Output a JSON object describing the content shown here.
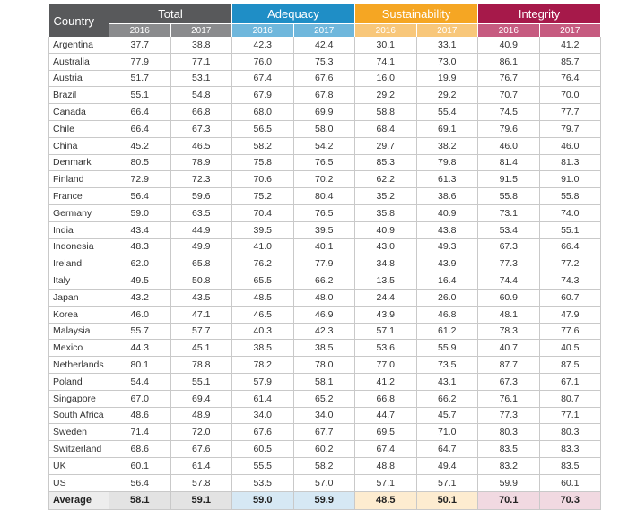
{
  "header": {
    "country_label": "Country",
    "groups": [
      {
        "name": "Total",
        "color": "#58595b"
      },
      {
        "name": "Adequacy",
        "color": "#1f8ec6"
      },
      {
        "name": "Sustainability",
        "color": "#f5a623"
      },
      {
        "name": "Integrity",
        "color": "#a6194a"
      }
    ],
    "years": [
      "2016",
      "2017"
    ]
  },
  "rows": [
    {
      "country": "Argentina",
      "values": [
        "37.7",
        "38.8",
        "42.3",
        "42.4",
        "30.1",
        "33.1",
        "40.9",
        "41.2"
      ]
    },
    {
      "country": "Australia",
      "values": [
        "77.9",
        "77.1",
        "76.0",
        "75.3",
        "74.1",
        "73.0",
        "86.1",
        "85.7"
      ]
    },
    {
      "country": "Austria",
      "values": [
        "51.7",
        "53.1",
        "67.4",
        "67.6",
        "16.0",
        "19.9",
        "76.7",
        "76.4"
      ]
    },
    {
      "country": "Brazil",
      "values": [
        "55.1",
        "54.8",
        "67.9",
        "67.8",
        "29.2",
        "29.2",
        "70.7",
        "70.0"
      ]
    },
    {
      "country": "Canada",
      "values": [
        "66.4",
        "66.8",
        "68.0",
        "69.9",
        "58.8",
        "55.4",
        "74.5",
        "77.7"
      ]
    },
    {
      "country": "Chile",
      "values": [
        "66.4",
        "67.3",
        "56.5",
        "58.0",
        "68.4",
        "69.1",
        "79.6",
        "79.7"
      ]
    },
    {
      "country": "China",
      "values": [
        "45.2",
        "46.5",
        "58.2",
        "54.2",
        "29.7",
        "38.2",
        "46.0",
        "46.0"
      ]
    },
    {
      "country": "Denmark",
      "values": [
        "80.5",
        "78.9",
        "75.8",
        "76.5",
        "85.3",
        "79.8",
        "81.4",
        "81.3"
      ]
    },
    {
      "country": "Finland",
      "values": [
        "72.9",
        "72.3",
        "70.6",
        "70.2",
        "62.2",
        "61.3",
        "91.5",
        "91.0"
      ]
    },
    {
      "country": "France",
      "values": [
        "56.4",
        "59.6",
        "75.2",
        "80.4",
        "35.2",
        "38.6",
        "55.8",
        "55.8"
      ]
    },
    {
      "country": "Germany",
      "values": [
        "59.0",
        "63.5",
        "70.4",
        "76.5",
        "35.8",
        "40.9",
        "73.1",
        "74.0"
      ]
    },
    {
      "country": "India",
      "values": [
        "43.4",
        "44.9",
        "39.5",
        "39.5",
        "40.9",
        "43.8",
        "53.4",
        "55.1"
      ]
    },
    {
      "country": "Indonesia",
      "values": [
        "48.3",
        "49.9",
        "41.0",
        "40.1",
        "43.0",
        "49.3",
        "67.3",
        "66.4"
      ]
    },
    {
      "country": "Ireland",
      "values": [
        "62.0",
        "65.8",
        "76.2",
        "77.9",
        "34.8",
        "43.9",
        "77.3",
        "77.2"
      ]
    },
    {
      "country": "Italy",
      "values": [
        "49.5",
        "50.8",
        "65.5",
        "66.2",
        "13.5",
        "16.4",
        "74.4",
        "74.3"
      ]
    },
    {
      "country": "Japan",
      "values": [
        "43.2",
        "43.5",
        "48.5",
        "48.0",
        "24.4",
        "26.0",
        "60.9",
        "60.7"
      ]
    },
    {
      "country": "Korea",
      "values": [
        "46.0",
        "47.1",
        "46.5",
        "46.9",
        "43.9",
        "46.8",
        "48.1",
        "47.9"
      ]
    },
    {
      "country": "Malaysia",
      "values": [
        "55.7",
        "57.7",
        "40.3",
        "42.3",
        "57.1",
        "61.2",
        "78.3",
        "77.6"
      ]
    },
    {
      "country": "Mexico",
      "values": [
        "44.3",
        "45.1",
        "38.5",
        "38.5",
        "53.6",
        "55.9",
        "40.7",
        "40.5"
      ]
    },
    {
      "country": "Netherlands",
      "values": [
        "80.1",
        "78.8",
        "78.2",
        "78.0",
        "77.0",
        "73.5",
        "87.7",
        "87.5"
      ]
    },
    {
      "country": "Poland",
      "values": [
        "54.4",
        "55.1",
        "57.9",
        "58.1",
        "41.2",
        "43.1",
        "67.3",
        "67.1"
      ]
    },
    {
      "country": "Singapore",
      "values": [
        "67.0",
        "69.4",
        "61.4",
        "65.2",
        "66.8",
        "66.2",
        "76.1",
        "80.7"
      ]
    },
    {
      "country": "South Africa",
      "values": [
        "48.6",
        "48.9",
        "34.0",
        "34.0",
        "44.7",
        "45.7",
        "77.3",
        "77.1"
      ]
    },
    {
      "country": "Sweden",
      "values": [
        "71.4",
        "72.0",
        "67.6",
        "67.7",
        "69.5",
        "71.0",
        "80.3",
        "80.3"
      ]
    },
    {
      "country": "Switzerland",
      "values": [
        "68.6",
        "67.6",
        "60.5",
        "60.2",
        "67.4",
        "64.7",
        "83.5",
        "83.3"
      ]
    },
    {
      "country": "UK",
      "values": [
        "60.1",
        "61.4",
        "55.5",
        "58.2",
        "48.8",
        "49.4",
        "83.2",
        "83.5"
      ]
    },
    {
      "country": "US",
      "values": [
        "56.4",
        "57.8",
        "53.5",
        "57.0",
        "57.1",
        "57.1",
        "59.9",
        "60.1"
      ]
    }
  ],
  "average": {
    "label": "Average",
    "values": [
      "58.1",
      "59.1",
      "59.0",
      "59.9",
      "48.5",
      "50.1",
      "70.1",
      "70.3"
    ]
  }
}
